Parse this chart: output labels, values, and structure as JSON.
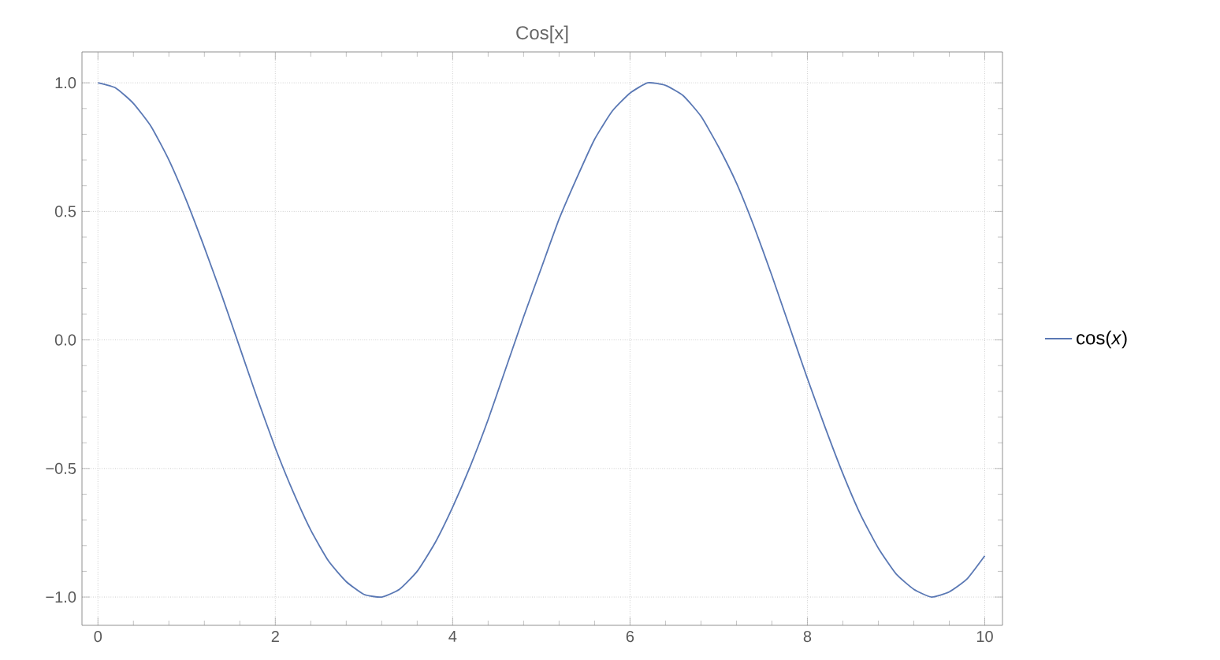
{
  "chart_data": {
    "type": "line",
    "title": "Cos[x]",
    "x": [
      0,
      0.2,
      0.4,
      0.6,
      0.8,
      1.0,
      1.2,
      1.4,
      1.6,
      1.8,
      2.0,
      2.2,
      2.4,
      2.6,
      2.8,
      3.0,
      3.2,
      3.4,
      3.6,
      3.8,
      4.0,
      4.2,
      4.4,
      4.6,
      4.8,
      5.0,
      5.2,
      5.4,
      5.6,
      5.8,
      6.0,
      6.2,
      6.4,
      6.6,
      6.8,
      7.0,
      7.2,
      7.4,
      7.6,
      7.8,
      8.0,
      8.2,
      8.4,
      8.6,
      8.8,
      9.0,
      9.2,
      9.4,
      9.6,
      9.8,
      10.0
    ],
    "series": [
      {
        "name": "cos(*x*)",
        "color": "#5a78b4",
        "values": [
          1.0,
          0.98,
          0.92,
          0.83,
          0.7,
          0.54,
          0.36,
          0.17,
          -0.03,
          -0.23,
          -0.42,
          -0.59,
          -0.74,
          -0.86,
          -0.94,
          -0.99,
          -1.0,
          -0.97,
          -0.9,
          -0.79,
          -0.65,
          -0.49,
          -0.31,
          -0.11,
          0.09,
          0.28,
          0.47,
          0.63,
          0.78,
          0.89,
          0.96,
          1.0,
          0.99,
          0.95,
          0.87,
          0.75,
          0.61,
          0.44,
          0.25,
          0.05,
          -0.15,
          -0.34,
          -0.52,
          -0.68,
          -0.81,
          -0.91,
          -0.97,
          -1.0,
          -0.98,
          -0.93,
          -0.84
        ]
      }
    ],
    "xlim": [
      -0.18,
      10.2
    ],
    "ylim": [
      -1.11,
      1.12
    ],
    "xticks": [
      0,
      2,
      4,
      6,
      8,
      10
    ],
    "yticks": [
      {
        "value": -1,
        "label": "−1.0"
      },
      {
        "value": -0.5,
        "label": "−0.5"
      },
      {
        "value": 0,
        "label": "0.0"
      },
      {
        "value": 0.5,
        "label": "0.5"
      },
      {
        "value": 1,
        "label": "1.0"
      }
    ],
    "grid": true,
    "legend": "right"
  }
}
